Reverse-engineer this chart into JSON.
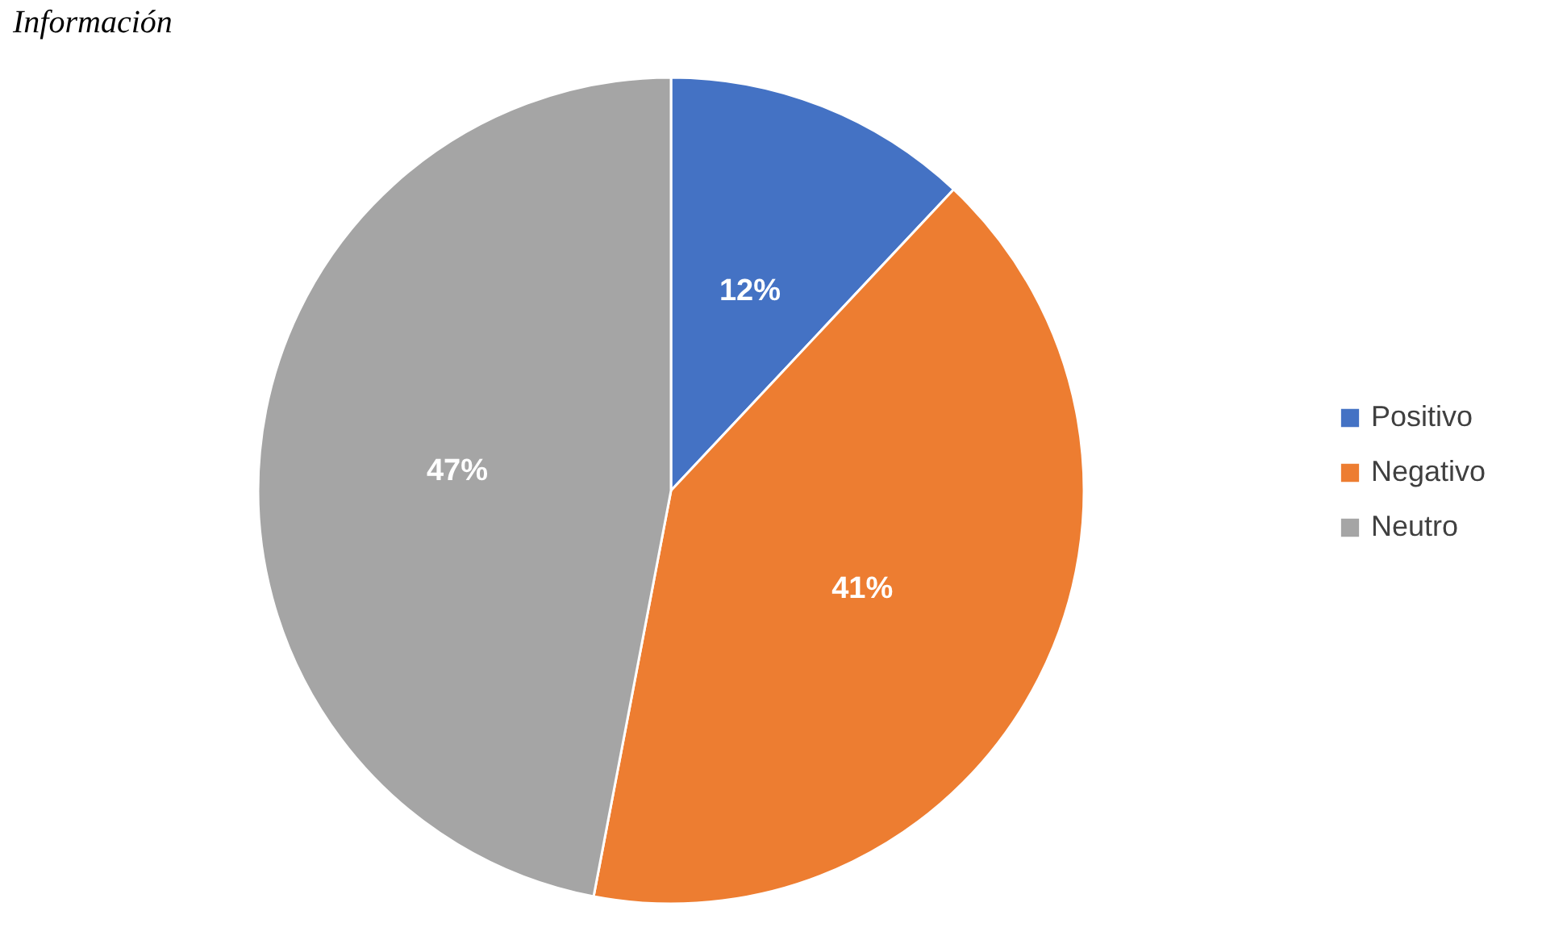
{
  "chart_data": {
    "type": "pie",
    "title": "Información",
    "categories": [
      "Positivo",
      "Negativo",
      "Neutro"
    ],
    "values": [
      12,
      41,
      47
    ],
    "colors": [
      "#4472c4",
      "#ed7d31",
      "#a5a5a5"
    ],
    "value_labels": [
      "12%",
      "41%",
      "47%"
    ],
    "legend": "right"
  }
}
